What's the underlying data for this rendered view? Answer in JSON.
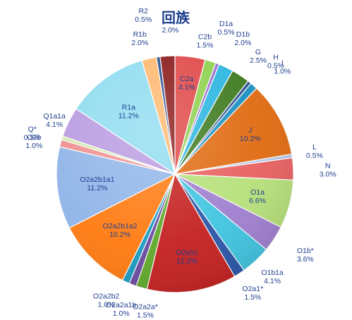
{
  "chart_data": {
    "type": "pie",
    "title": "回族",
    "slices": [
      {
        "label": "C2a",
        "pct": "4.1%",
        "value": 4.1,
        "color": "#e04848"
      },
      {
        "label": "C2b",
        "pct": "1.5%",
        "value": 1.5,
        "color": "#8fd14f"
      },
      {
        "label": "D1a",
        "pct": "0.5%",
        "value": 0.5,
        "color": "#9b6fd0"
      },
      {
        "label": "D1b",
        "pct": "2.0%",
        "value": 2.0,
        "color": "#2bb6e0"
      },
      {
        "label": "G",
        "pct": "2.5%",
        "value": 2.5,
        "color": "#3f7a20"
      },
      {
        "label": "H",
        "pct": "0.5%",
        "value": 0.5,
        "color": "#2e4f8f"
      },
      {
        "label": "I",
        "pct": "1.0%",
        "value": 1.0,
        "color": "#1a8fc0"
      },
      {
        "label": "J",
        "pct": "10.2%",
        "value": 10.2,
        "color": "#e06a10"
      },
      {
        "label": "L",
        "pct": "0.5%",
        "value": 0.5,
        "color": "#b0c4e8"
      },
      {
        "label": "N",
        "pct": "3.0%",
        "value": 3.0,
        "color": "#e86060"
      },
      {
        "label": "O1a",
        "pct": "6.6%",
        "value": 6.6,
        "color": "#b6e07a"
      },
      {
        "label": "O1b*",
        "pct": "3.6%",
        "value": 3.6,
        "color": "#a07fd0"
      },
      {
        "label": "O1b1a",
        "pct": "4.1%",
        "value": 4.1,
        "color": "#40c4e0"
      },
      {
        "label": "O2a1*",
        "pct": "1.5%",
        "value": 1.5,
        "color": "#2a56a8"
      },
      {
        "label": "O2a1c",
        "pct": "12.2%",
        "value": 12.2,
        "color": "#c42020"
      },
      {
        "label": "O2a2a*",
        "pct": "1.5%",
        "value": 1.5,
        "color": "#5fa82a"
      },
      {
        "label": "O2a2a1b",
        "pct": "1.0%",
        "value": 1.0,
        "color": "#6a4aa0"
      },
      {
        "label": "O2a2b2",
        "pct": "1.0%",
        "value": 1.0,
        "color": "#1a9ac0"
      },
      {
        "label": "O2a2b1a2",
        "pct": "10.2%",
        "value": 10.2,
        "color": "#ff7a10"
      },
      {
        "label": "O2a2b1a1",
        "pct": "11.2%",
        "value": 11.2,
        "color": "#8fb4e8"
      },
      {
        "label": "O2b",
        "pct": "1.0%",
        "value": 1.0,
        "color": "#f08f8f"
      },
      {
        "label": "Q*",
        "pct": "0.5%",
        "value": 0.5,
        "color": "#d0e8a8"
      },
      {
        "label": "Q1a1a",
        "pct": "4.1%",
        "value": 4.1,
        "color": "#b89ae0"
      },
      {
        "label": "R1a",
        "pct": "11.2%",
        "value": 11.2,
        "color": "#8fdcf0"
      },
      {
        "label": "R1b",
        "pct": "2.0%",
        "value": 2.0,
        "color": "#ffb870"
      },
      {
        "label": "R2",
        "pct": "0.5%",
        "value": 0.5,
        "color": "#2a4f8f"
      },
      {
        "label": "T",
        "pct": "2.0%",
        "value": 2.0,
        "color": "#8a1a1a"
      }
    ]
  }
}
